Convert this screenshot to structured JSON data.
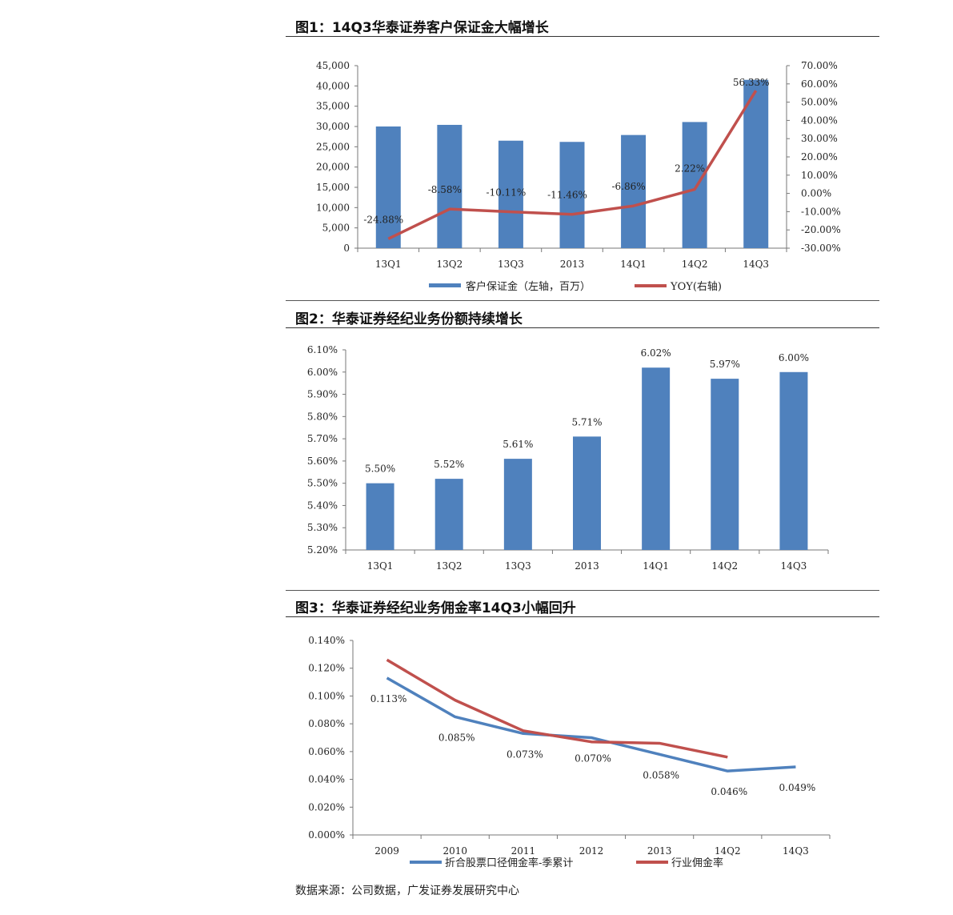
{
  "figures": [
    {
      "title": "图1：14Q3华泰证券客户保证金大幅增长"
    },
    {
      "title": "图2：华泰证券经纪业务份额持续增长"
    },
    {
      "title": "图3：华泰证券经纪业务佣金率14Q3小幅回升"
    }
  ],
  "source": "数据来源：公司数据，广发证券发展研究中心",
  "chart_data": [
    {
      "type": "bar",
      "categories": [
        "13Q1",
        "13Q2",
        "13Q3",
        "2013",
        "14Q1",
        "14Q2",
        "14Q3"
      ],
      "series": [
        {
          "name": "客户保证金（左轴，百万）",
          "type": "bar",
          "axis": "left",
          "values": [
            30000,
            30400,
            26500,
            26200,
            27900,
            31100,
            41500
          ],
          "color": "#4f81bd"
        },
        {
          "name": "YOY(右轴)",
          "type": "line",
          "axis": "right",
          "values": [
            -24.88,
            -8.58,
            -10.11,
            -11.46,
            -6.86,
            2.22,
            56.33
          ],
          "labels": [
            "-24.88%",
            "-8.58%",
            "-10.11%",
            "-11.46%",
            "-6.86%",
            "2.22%",
            "56.33%"
          ],
          "color": "#c0504d"
        }
      ],
      "ylim": [
        0,
        45000
      ],
      "y_ticks": [
        "0",
        "5,000",
        "10,000",
        "15,000",
        "20,000",
        "25,000",
        "30,000",
        "35,000",
        "40,000",
        "45,000"
      ],
      "y2lim": [
        -30,
        70
      ],
      "y2_ticks": [
        "-30.00%",
        "-20.00%",
        "-10.00%",
        "0.00%",
        "10.00%",
        "20.00%",
        "30.00%",
        "40.00%",
        "50.00%",
        "60.00%",
        "70.00%"
      ],
      "legend": "bottom"
    },
    {
      "type": "bar",
      "categories": [
        "13Q1",
        "13Q2",
        "13Q3",
        "2013",
        "14Q1",
        "14Q2",
        "14Q3"
      ],
      "series": [
        {
          "values": [
            5.5,
            5.52,
            5.61,
            5.71,
            6.02,
            5.97,
            6.0
          ],
          "labels": [
            "5.50%",
            "5.52%",
            "5.61%",
            "5.71%",
            "6.02%",
            "5.97%",
            "6.00%"
          ],
          "color": "#4f81bd"
        }
      ],
      "ylim": [
        5.2,
        6.1
      ],
      "y_ticks": [
        "5.20%",
        "5.30%",
        "5.40%",
        "5.50%",
        "5.60%",
        "5.70%",
        "5.80%",
        "5.90%",
        "6.00%",
        "6.10%"
      ]
    },
    {
      "type": "line",
      "categories": [
        "2009",
        "2010",
        "2011",
        "2012",
        "2013",
        "14Q2",
        "14Q3"
      ],
      "series": [
        {
          "name": "折合股票口径佣金率-季累计",
          "color": "#4f81bd",
          "values": [
            0.113,
            0.085,
            0.073,
            0.07,
            0.058,
            0.046,
            0.049
          ],
          "labels": [
            "0.113%",
            "0.085%",
            "0.073%",
            "0.070%",
            "0.058%",
            "0.046%",
            "0.049%"
          ]
        },
        {
          "name": "行业佣金率",
          "color": "#c0504d",
          "values": [
            0.126,
            0.097,
            0.075,
            0.067,
            0.066,
            0.056,
            null
          ]
        }
      ],
      "ylim": [
        0,
        0.14
      ],
      "y_ticks": [
        "0.000%",
        "0.020%",
        "0.040%",
        "0.060%",
        "0.080%",
        "0.100%",
        "0.120%",
        "0.140%"
      ],
      "legend": "bottom"
    }
  ]
}
